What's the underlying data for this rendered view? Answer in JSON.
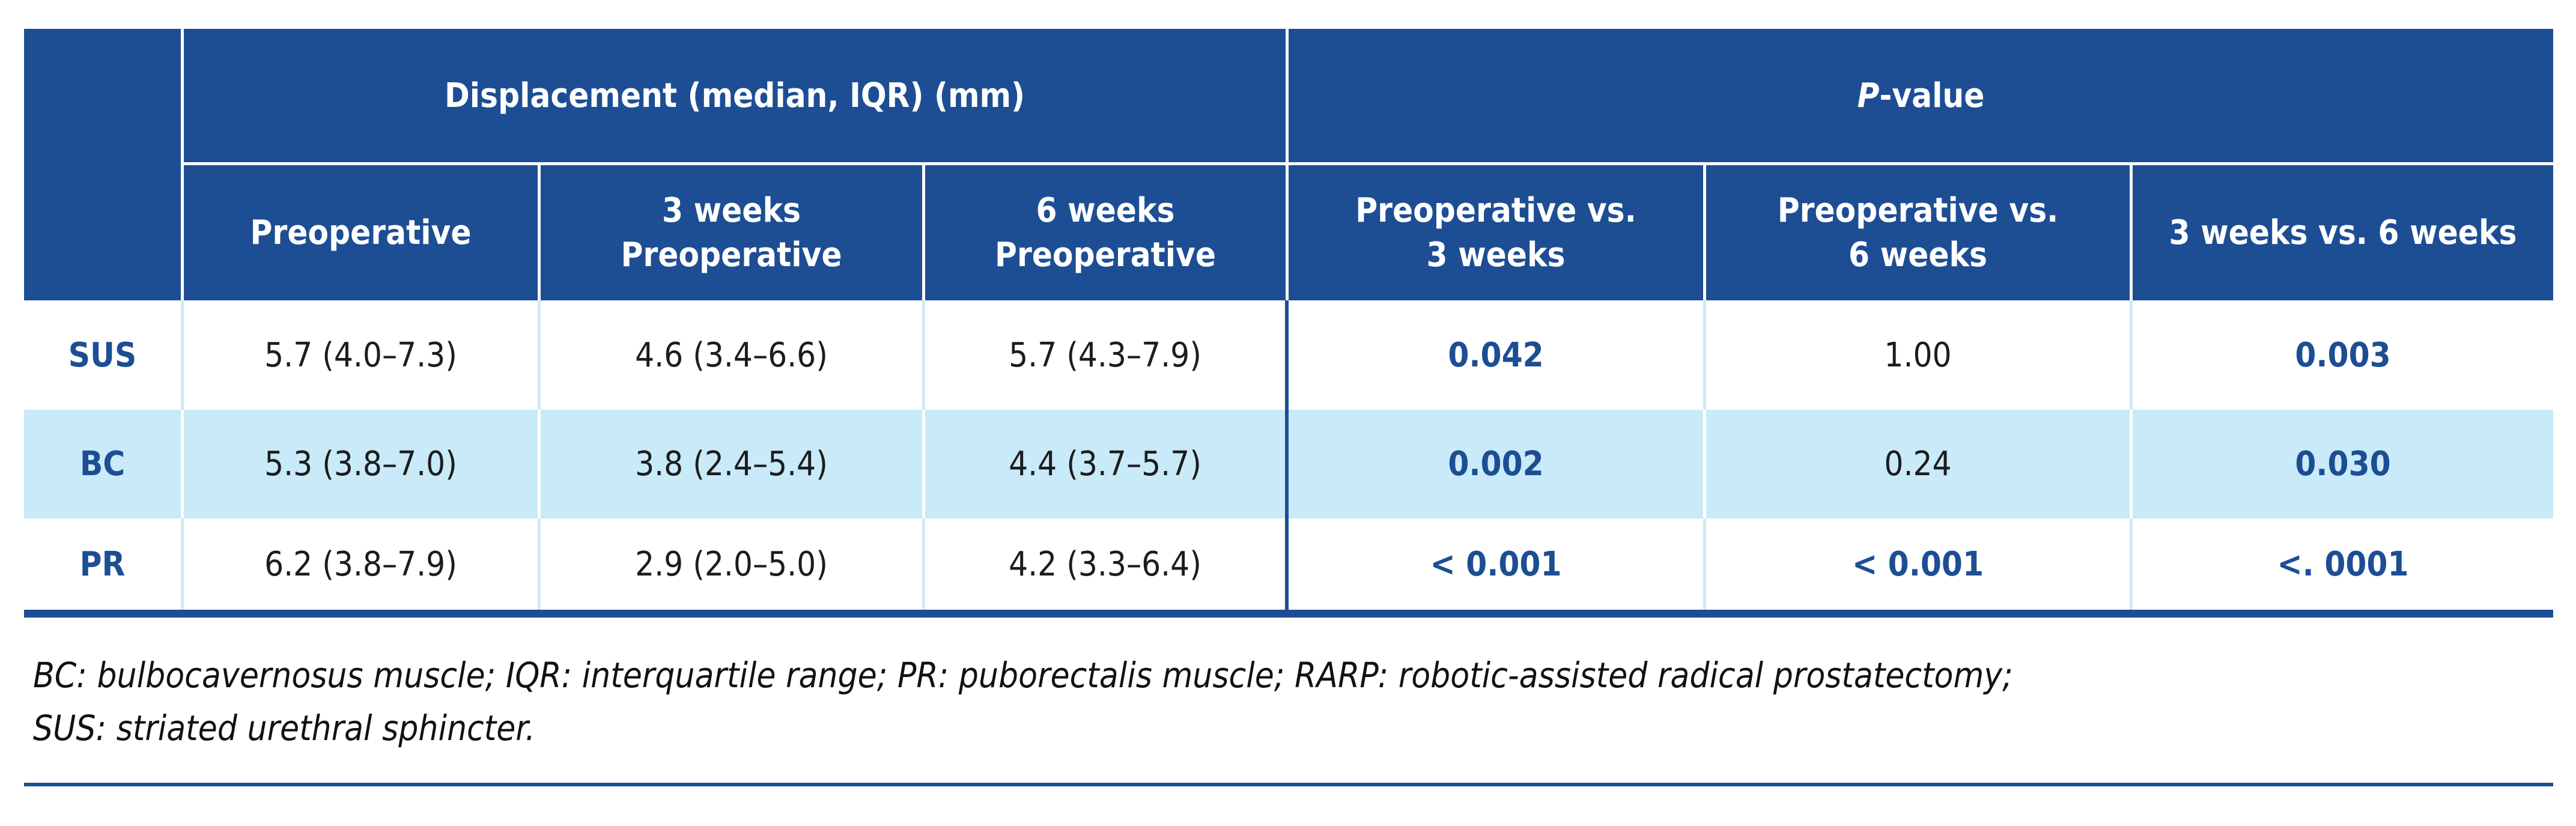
{
  "table": {
    "group_headers": {
      "displacement": "Displacement (median, IQR) (mm)",
      "p_italic": "P",
      "p_suffix": "-value"
    },
    "sub_headers": [
      "Preoperative",
      "3 weeks\nPreoperative",
      "6 weeks\nPreoperative",
      "Preoperative vs.\n3 weeks",
      "Preoperative vs.\n6 weeks",
      "3 weeks vs. 6 weeks"
    ],
    "rows": [
      {
        "label": "SUS",
        "displacement": [
          "5.7 (4.0–7.3)",
          "4.6 (3.4–6.6)",
          "5.7 (4.3–7.9)"
        ],
        "p_values": [
          "0.042",
          "1.00",
          "0.003"
        ]
      },
      {
        "label": "BC",
        "displacement": [
          "5.3 (3.8–7.0)",
          "3.8 (2.4–5.4)",
          "4.4 (3.7–5.7)"
        ],
        "p_values": [
          "0.002",
          "0.24",
          "0.030"
        ]
      },
      {
        "label": "PR",
        "displacement": [
          "6.2 (3.8–7.9)",
          "2.9 (2.0–5.0)",
          "4.2 (3.3–6.4)"
        ],
        "p_values": [
          "< 0.001",
          "< 0.001",
          "<. 0001"
        ]
      }
    ]
  },
  "footnote": {
    "line1": "BC: bulbocavernosus muscle; IQR: interquartile range; PR: puborectalis muscle; RARP: robotic-assisted radical prostatectomy;",
    "line2": "SUS: striated urethral sphincter."
  },
  "colors": {
    "header_blue": "#1d4e94",
    "row_highlight_blue": "#c9eaf8",
    "separator_light_blue": "#cdeaf7",
    "significant_pvalue_blue": "#1d4e94",
    "text_black": "#1c1c1c"
  }
}
